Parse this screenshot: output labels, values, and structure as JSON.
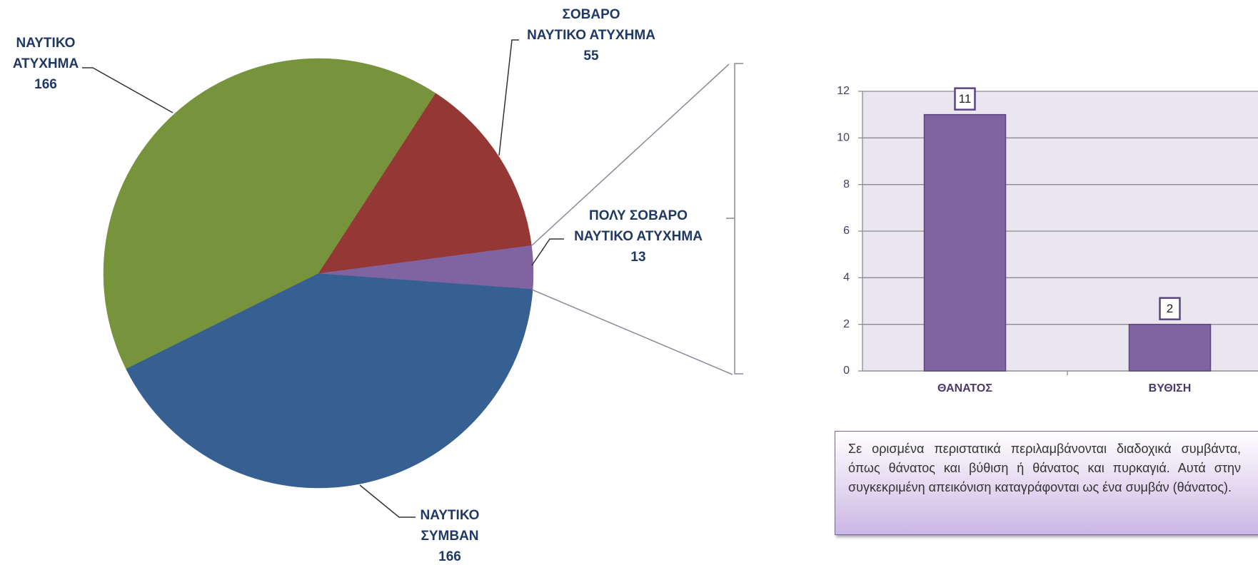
{
  "chart_data": [
    {
      "type": "pie",
      "categories": [
        "ΝΑΥΤΙΚΟ\nΑΤΥΧΗΜΑ",
        "ΣΟΒΑΡΟ\nΝΑΥΤΙΚΟ ΑΤΥΧΗΜΑ",
        "ΠΟΛΥ ΣΟΒΑΡΟ\nΝΑΥΤΙΚΟ ΑΤΥΧΗΜΑ",
        "ΝΑΥΤΙΚΟ\nΣΥΜΒΑΝ"
      ],
      "values": [
        166,
        55,
        13,
        166
      ],
      "colors": [
        "#77933c",
        "#953735",
        "#8064a2",
        "#376092"
      ]
    },
    {
      "type": "bar",
      "categories": [
        "ΘΑΝΑΤΟΣ",
        "ΒΥΘΙΣΗ"
      ],
      "values": [
        11,
        2
      ],
      "color": "#8064a2",
      "ylim": [
        0,
        12
      ],
      "yticks": [
        0,
        2,
        4,
        6,
        8,
        10,
        12
      ],
      "grid": true
    }
  ],
  "note": {
    "text": "Σε ορισμένα περιστατικά περιλαμβάνονται διαδοχικά συμβάντα, όπως θάνατος και βύθιση ή θάνατος και πυρκαγιά. Αυτά στην συγκεκριμένη απεικόνιση καταγράφονται ως ένα συμβάν (θάνατος)."
  }
}
